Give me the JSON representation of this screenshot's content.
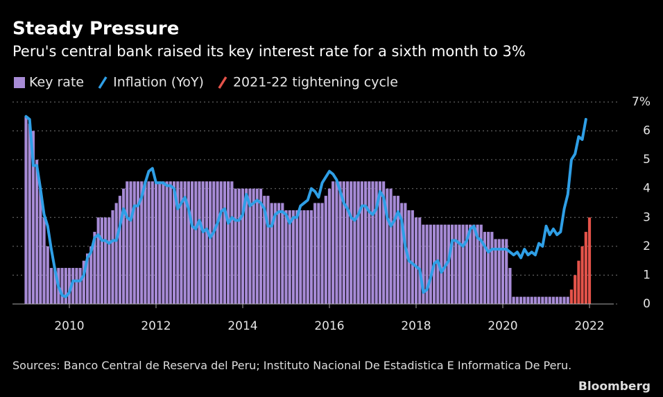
{
  "chart_data": {
    "type": "bar",
    "title": "Steady Pressure",
    "subtitle": "Peru's central bank raised its key interest rate for a sixth month to 3%",
    "source": "Sources: Banco Central de Reserva del Peru; Instituto Nacional De Estadistica E Informatica De Peru.",
    "brand": "Bloomberg",
    "legend": "top-left",
    "grid": true,
    "xlim": [
      2008.9,
      2022.3
    ],
    "xticks": [
      2010,
      2012,
      2014,
      2016,
      2018,
      2020,
      2022
    ],
    "ylim": [
      0,
      7
    ],
    "yticks": [
      0,
      1,
      2,
      3,
      4,
      5,
      6,
      {
        "value": 7,
        "label": "7%"
      }
    ],
    "x": [
      2009,
      2009.083,
      2009.167,
      2009.25,
      2009.333,
      2009.417,
      2009.5,
      2009.583,
      2009.667,
      2009.75,
      2009.833,
      2009.917,
      2010,
      2010.083,
      2010.167,
      2010.25,
      2010.333,
      2010.417,
      2010.5,
      2010.583,
      2010.667,
      2010.75,
      2010.833,
      2010.917,
      2011,
      2011.083,
      2011.167,
      2011.25,
      2011.333,
      2011.417,
      2011.5,
      2011.583,
      2011.667,
      2011.75,
      2011.833,
      2011.917,
      2012,
      2012.083,
      2012.167,
      2012.25,
      2012.333,
      2012.417,
      2012.5,
      2012.583,
      2012.667,
      2012.75,
      2012.833,
      2012.917,
      2013,
      2013.083,
      2013.167,
      2013.25,
      2013.333,
      2013.417,
      2013.5,
      2013.583,
      2013.667,
      2013.75,
      2013.833,
      2013.917,
      2014,
      2014.083,
      2014.167,
      2014.25,
      2014.333,
      2014.417,
      2014.5,
      2014.583,
      2014.667,
      2014.75,
      2014.833,
      2014.917,
      2015,
      2015.083,
      2015.167,
      2015.25,
      2015.333,
      2015.417,
      2015.5,
      2015.583,
      2015.667,
      2015.75,
      2015.833,
      2015.917,
      2016,
      2016.083,
      2016.167,
      2016.25,
      2016.333,
      2016.417,
      2016.5,
      2016.583,
      2016.667,
      2016.75,
      2016.833,
      2016.917,
      2017,
      2017.083,
      2017.167,
      2017.25,
      2017.333,
      2017.417,
      2017.5,
      2017.583,
      2017.667,
      2017.75,
      2017.833,
      2017.917,
      2018,
      2018.083,
      2018.167,
      2018.25,
      2018.333,
      2018.417,
      2018.5,
      2018.583,
      2018.667,
      2018.75,
      2018.833,
      2018.917,
      2019,
      2019.083,
      2019.167,
      2019.25,
      2019.333,
      2019.417,
      2019.5,
      2019.583,
      2019.667,
      2019.75,
      2019.833,
      2019.917,
      2020,
      2020.083,
      2020.167,
      2020.25,
      2020.333,
      2020.417,
      2020.5,
      2020.583,
      2020.667,
      2020.75,
      2020.833,
      2020.917,
      2021,
      2021.083,
      2021.167,
      2021.25,
      2021.333,
      2021.417,
      2021.5,
      2021.583,
      2021.667,
      2021.75,
      2021.833,
      2021.917,
      2022
    ],
    "series": [
      {
        "name": "Key rate",
        "type": "bar",
        "color": "#a78bd6",
        "values": [
          6.5,
          6.25,
          6,
          5,
          4,
          3,
          2,
          1.25,
          1.25,
          1.25,
          1.25,
          1.25,
          1.25,
          1.25,
          1.25,
          1.25,
          1.5,
          1.75,
          2,
          2.5,
          3,
          3,
          3,
          3,
          3.25,
          3.5,
          3.75,
          4,
          4.25,
          4.25,
          4.25,
          4.25,
          4.25,
          4.25,
          4.25,
          4.25,
          4.25,
          4.25,
          4.25,
          4.25,
          4.25,
          4.25,
          4.25,
          4.25,
          4.25,
          4.25,
          4.25,
          4.25,
          4.25,
          4.25,
          4.25,
          4.25,
          4.25,
          4.25,
          4.25,
          4.25,
          4.25,
          4.25,
          4,
          4,
          4,
          4,
          4,
          4,
          4,
          4,
          3.75,
          3.75,
          3.5,
          3.5,
          3.5,
          3.5,
          3.25,
          3.25,
          3.25,
          3.25,
          3.25,
          3.25,
          3.25,
          3.25,
          3.5,
          3.5,
          3.5,
          3.75,
          4,
          4.25,
          4.25,
          4.25,
          4.25,
          4.25,
          4.25,
          4.25,
          4.25,
          4.25,
          4.25,
          4.25,
          4.25,
          4.25,
          4.25,
          4.25,
          4,
          4,
          3.75,
          3.75,
          3.5,
          3.5,
          3.25,
          3.25,
          3,
          3,
          2.75,
          2.75,
          2.75,
          2.75,
          2.75,
          2.75,
          2.75,
          2.75,
          2.75,
          2.75,
          2.75,
          2.75,
          2.75,
          2.75,
          2.75,
          2.75,
          2.75,
          2.5,
          2.5,
          2.5,
          2.25,
          2.25,
          2.25,
          2.25,
          1.25,
          0.25,
          0.25,
          0.25,
          0.25,
          0.25,
          0.25,
          0.25,
          0.25,
          0.25,
          0.25,
          0.25,
          0.25,
          0.25,
          0.25,
          0.25,
          0.25,
          null,
          null,
          null,
          null,
          null,
          null
        ]
      },
      {
        "name": "Inflation (YoY)",
        "type": "line",
        "color": "#2f9fe6",
        "values": [
          6.5,
          6.4,
          4.8,
          4.8,
          4.0,
          3.1,
          2.7,
          1.9,
          1.2,
          0.6,
          0.3,
          0.25,
          0.4,
          0.8,
          0.8,
          0.8,
          1.0,
          1.6,
          1.8,
          2.3,
          2.4,
          2.2,
          2.2,
          2.1,
          2.2,
          2.2,
          2.7,
          3.3,
          3.0,
          2.9,
          3.4,
          3.4,
          3.7,
          4.2,
          4.6,
          4.7,
          4.2,
          4.2,
          4.2,
          4.1,
          4.1,
          4.0,
          3.3,
          3.5,
          3.7,
          3.3,
          2.7,
          2.6,
          2.9,
          2.5,
          2.6,
          2.3,
          2.5,
          2.8,
          3.2,
          3.3,
          2.8,
          3.0,
          2.9,
          2.9,
          3.1,
          3.8,
          3.4,
          3.5,
          3.6,
          3.5,
          3.3,
          2.7,
          2.7,
          3.1,
          3.2,
          3.2,
          3.1,
          2.8,
          3.0,
          3.0,
          3.4,
          3.5,
          3.6,
          4.0,
          3.9,
          3.7,
          4.2,
          4.4,
          4.6,
          4.5,
          4.3,
          3.9,
          3.5,
          3.3,
          3.0,
          2.9,
          3.1,
          3.4,
          3.4,
          3.2,
          3.1,
          3.3,
          3.9,
          3.7,
          3.0,
          2.7,
          2.9,
          3.2,
          2.9,
          2.0,
          1.5,
          1.4,
          1.3,
          1.2,
          0.4,
          0.5,
          0.9,
          1.4,
          1.5,
          1.1,
          1.3,
          1.5,
          2.2,
          2.2,
          2.1,
          2.0,
          2.2,
          2.6,
          2.7,
          2.3,
          2.2,
          2.0,
          1.8,
          1.9,
          1.9,
          1.9,
          1.9,
          1.9,
          1.8,
          1.7,
          1.8,
          1.6,
          1.9,
          1.7,
          1.8,
          1.7,
          2.1,
          2.0,
          2.7,
          2.4,
          2.6,
          2.4,
          2.5,
          3.3,
          3.8,
          5.0,
          5.2,
          5.8,
          5.7,
          6.4,
          null
        ]
      },
      {
        "name": "2021-22 tightening cycle",
        "type": "bar",
        "color": "#e4534a",
        "values": [
          null,
          null,
          null,
          null,
          null,
          null,
          null,
          null,
          null,
          null,
          null,
          null,
          null,
          null,
          null,
          null,
          null,
          null,
          null,
          null,
          null,
          null,
          null,
          null,
          null,
          null,
          null,
          null,
          null,
          null,
          null,
          null,
          null,
          null,
          null,
          null,
          null,
          null,
          null,
          null,
          null,
          null,
          null,
          null,
          null,
          null,
          null,
          null,
          null,
          null,
          null,
          null,
          null,
          null,
          null,
          null,
          null,
          null,
          null,
          null,
          null,
          null,
          null,
          null,
          null,
          null,
          null,
          null,
          null,
          null,
          null,
          null,
          null,
          null,
          null,
          null,
          null,
          null,
          null,
          null,
          null,
          null,
          null,
          null,
          null,
          null,
          null,
          null,
          null,
          null,
          null,
          null,
          null,
          null,
          null,
          null,
          null,
          null,
          null,
          null,
          null,
          null,
          null,
          null,
          null,
          null,
          null,
          null,
          null,
          null,
          null,
          null,
          null,
          null,
          null,
          null,
          null,
          null,
          null,
          null,
          null,
          null,
          null,
          null,
          null,
          null,
          null,
          null,
          null,
          null,
          null,
          null,
          null,
          null,
          null,
          null,
          null,
          null,
          null,
          null,
          null,
          null,
          null,
          null,
          null,
          null,
          null,
          null,
          null,
          null,
          null,
          0.5,
          1,
          1.5,
          2,
          2.5,
          3
        ]
      }
    ]
  }
}
